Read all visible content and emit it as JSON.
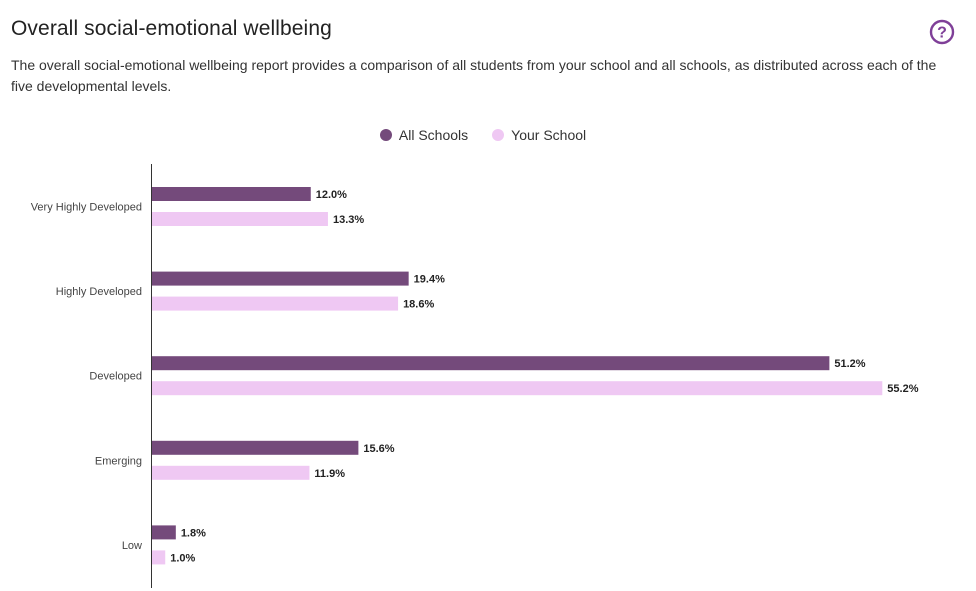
{
  "header": {
    "title": "Overall social-emotional wellbeing",
    "description": "The overall social-emotional wellbeing report provides a comparison of all students from your school and all schools, as distributed across each of the five developmental levels.",
    "help_icon": "question-circle-icon"
  },
  "colors": {
    "accent": "#7f3f98",
    "all_schools": "#744a7b",
    "your_school": "#efc8f3"
  },
  "chart_data": {
    "type": "bar",
    "orientation": "horizontal",
    "categories": [
      "Very Highly Developed",
      "Highly Developed",
      "Developed",
      "Emerging",
      "Low"
    ],
    "series": [
      {
        "name": "All Schools",
        "values": [
          12.0,
          19.4,
          51.2,
          15.6,
          1.8
        ],
        "labels": [
          "12.0%",
          "19.4%",
          "51.2%",
          "15.6%",
          "1.8%"
        ]
      },
      {
        "name": "Your School",
        "values": [
          13.3,
          18.6,
          55.2,
          11.9,
          1.0
        ],
        "labels": [
          "13.3%",
          "18.6%",
          "55.2%",
          "11.9%",
          "1.0%"
        ]
      }
    ],
    "legend_position": "top-center",
    "grid": false
  }
}
